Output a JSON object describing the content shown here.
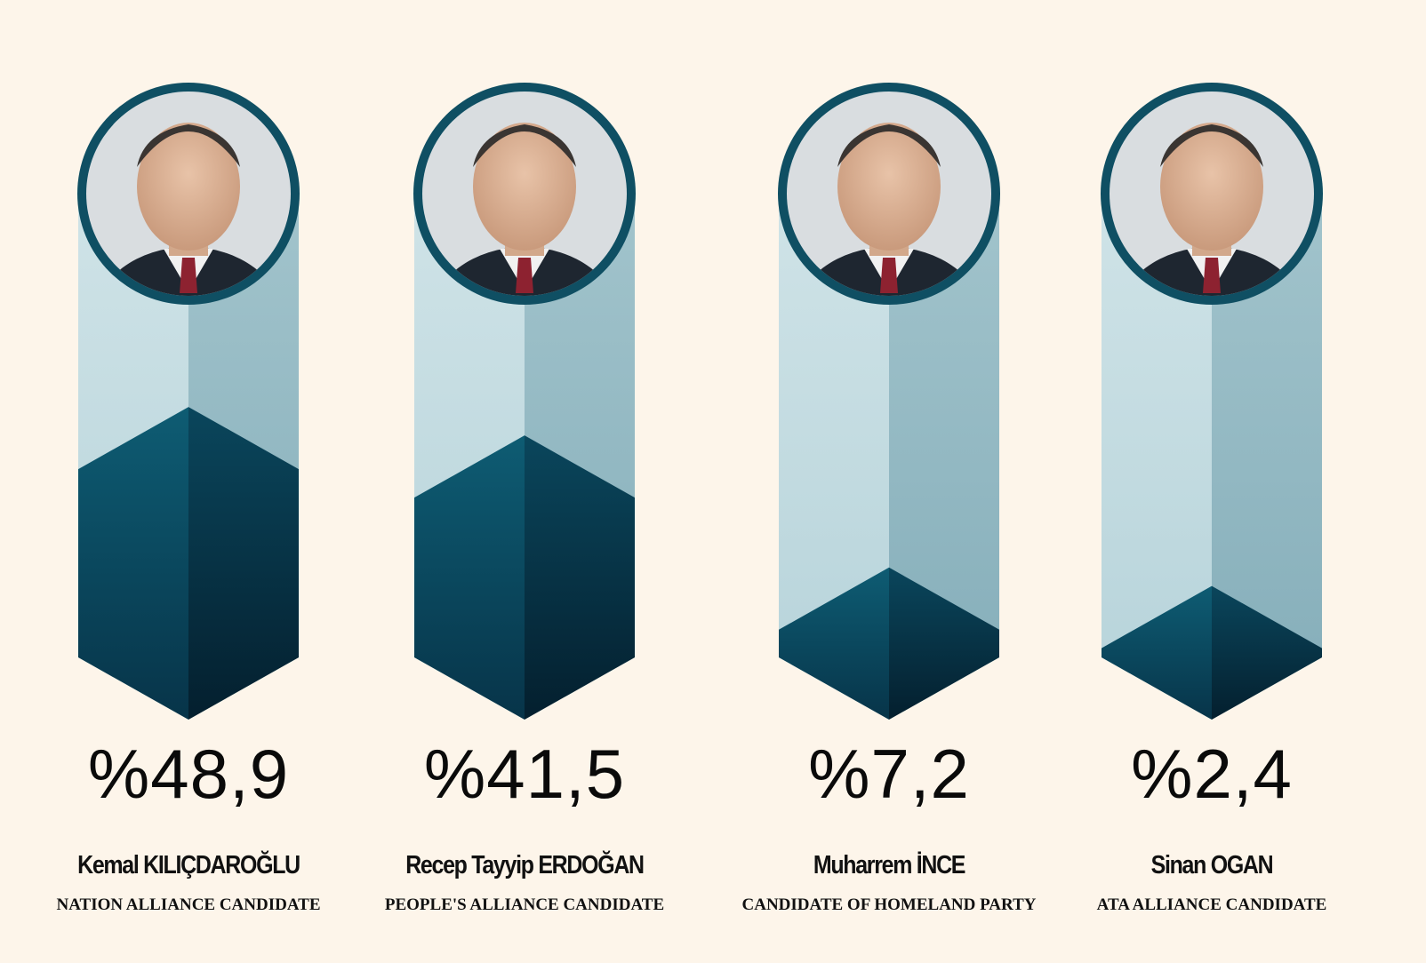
{
  "chart_data": {
    "type": "bar",
    "unit_prefix": "%",
    "categories": [
      "Kemal KILIÇDAROĞLU",
      "Recep Tayyip ERDOĞAN",
      "Muharrem İNCE",
      "Sinan OGAN"
    ],
    "values": [
      48.9,
      41.5,
      7.2,
      2.4
    ],
    "value_labels": [
      "%48,9",
      "%41,5",
      "%7,2",
      "%2,4"
    ],
    "subtitles": [
      "NATION ALLIANCE CANDIDATE",
      "PEOPLE'S ALLIANCE CANDIDATE",
      "CANDIDATE OF HOMELAND PARTY",
      "ATA ALLIANCE CANDIDATE"
    ],
    "candidate_photos": [
      "portrait-icon",
      "portrait-icon",
      "portrait-icon",
      "portrait-icon"
    ],
    "ylim": [
      0,
      60
    ],
    "grid": false,
    "legend": "none"
  },
  "colors": {
    "background": "#fdf5ea",
    "bar_light": "#c3dbe0",
    "bar_light_right": "#93b9c3",
    "fill_light": "#0d5870",
    "fill_dark": "#06344a",
    "ring": "#0f4f63"
  }
}
